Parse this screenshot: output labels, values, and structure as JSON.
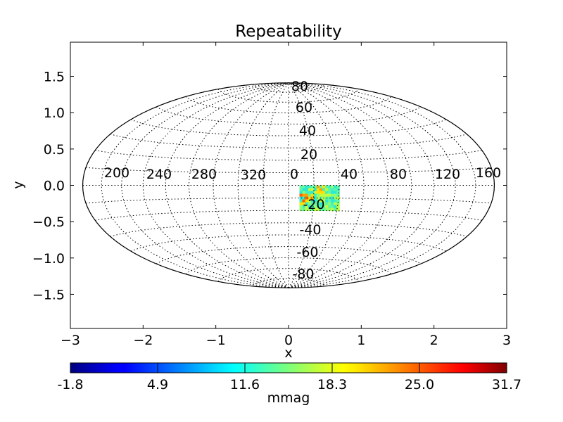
{
  "chart_data": {
    "type": "heatmap",
    "title": "Repeatability",
    "xlabel": "x",
    "ylabel": "y",
    "xlim": [
      -3,
      3
    ],
    "ylim": [
      -1.97,
      1.97
    ],
    "xticks": [
      -3,
      -2,
      -1,
      0,
      1,
      2,
      3
    ],
    "xtick_labels": [
      "−3",
      "−2",
      "−1",
      "0",
      "1",
      "2",
      "3"
    ],
    "yticks": [
      1.5,
      1.0,
      0.5,
      0.0,
      -0.5,
      -1.0,
      -1.5
    ],
    "ytick_labels": [
      "1.5",
      "1.0",
      "0.5",
      "0.0",
      "−0.5",
      "−1.0",
      "−1.5"
    ],
    "projection": "aitoff/hammer ellipse",
    "ellipse_half_width": 2.83,
    "ellipse_half_height": 1.41,
    "longitude_grid_labels": [
      "200",
      "240",
      "280",
      "320",
      "0",
      "40",
      "80",
      "120",
      "160"
    ],
    "latitude_grid_labels": [
      "80",
      "60",
      "40",
      "20",
      "-20",
      "-40",
      "-60",
      "-80"
    ],
    "grid": true,
    "heatmap_region": {
      "x_range": [
        0.15,
        0.7
      ],
      "y_range": [
        -0.35,
        0.0
      ],
      "description_values": "mixed cells ~11.6 to ~30 mmag"
    },
    "colorbar": {
      "label": "mmag",
      "ticks": [
        "-1.8",
        "4.9",
        "11.6",
        "18.3",
        "25.0",
        "31.7"
      ],
      "vmin": -1.8,
      "vmax": 31.7,
      "colormap": "jet"
    }
  }
}
